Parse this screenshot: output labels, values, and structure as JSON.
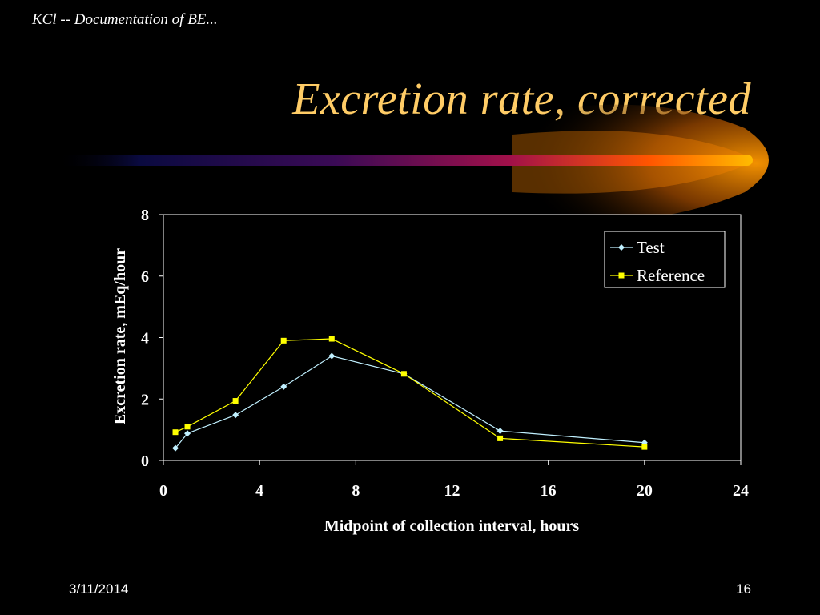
{
  "slide": {
    "header": "KCl -- Documentation of BE...",
    "title": "Excretion rate, corrected",
    "date": "3/11/2014",
    "page_number": "16"
  },
  "colors": {
    "title": "#ffcc66",
    "test_series": "#c0f0ff",
    "reference_series": "#ffff00",
    "swoosh": "#ff9900"
  },
  "chart_data": {
    "type": "line",
    "title": "",
    "xlabel": "Midpoint of collection interval, hours",
    "ylabel": "Excretion rate, mEq/hour",
    "xlim": [
      0,
      24
    ],
    "ylim": [
      0,
      8
    ],
    "xticks": [
      0,
      4,
      8,
      12,
      16,
      20,
      24
    ],
    "yticks": [
      0,
      2,
      4,
      6,
      8
    ],
    "legend_position": "top-right",
    "series": [
      {
        "name": "Test",
        "marker": "diamond",
        "x": [
          0.5,
          1,
          3,
          5,
          7,
          10,
          14,
          20
        ],
        "y": [
          0.4,
          0.88,
          1.48,
          2.4,
          3.4,
          2.82,
          0.96,
          0.58
        ]
      },
      {
        "name": "Reference",
        "marker": "square",
        "x": [
          0.5,
          1,
          3,
          5,
          7,
          10,
          14,
          20
        ],
        "y": [
          0.92,
          1.1,
          1.94,
          3.9,
          3.96,
          2.82,
          0.72,
          0.44
        ]
      }
    ]
  }
}
